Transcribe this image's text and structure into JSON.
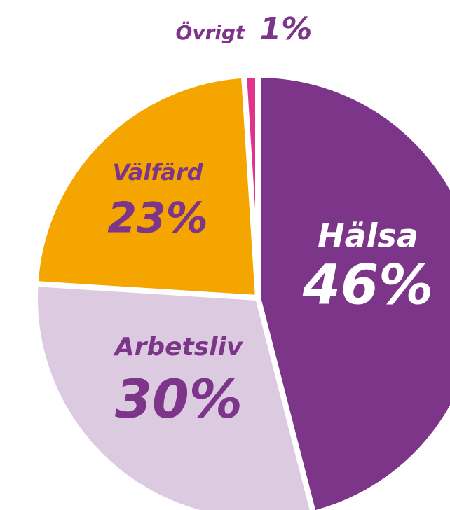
{
  "chart_data": {
    "type": "pie",
    "categories": [
      "Hälsa",
      "Arbetsliv",
      "Välfärd",
      "Övrigt"
    ],
    "values": [
      46,
      30,
      23,
      1
    ],
    "value_labels": [
      "46%",
      "30%",
      "23%",
      "1%"
    ],
    "colors": [
      "#7d3589",
      "#dccbe0",
      "#f5a500",
      "#e0338a"
    ]
  }
}
